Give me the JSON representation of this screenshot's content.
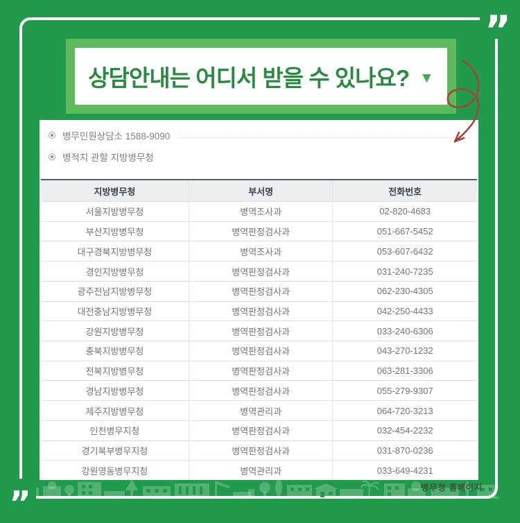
{
  "header": {
    "title": "상담안내는 어디서 받을 수 있나요?"
  },
  "decor": {
    "quote_mark": "”"
  },
  "icons": {
    "triangle_down": "▼"
  },
  "bullets": [
    {
      "text": "병무민원상담소 1588-9090"
    },
    {
      "text": "병적지 관할 지방병무청"
    }
  ],
  "table": {
    "headers": [
      "지방병무청",
      "부서명",
      "전화번호"
    ],
    "rows": [
      {
        "office": "서울지방병무청",
        "department": "병역조사과",
        "phone": "02-820-4683"
      },
      {
        "office": "부산지방병무청",
        "department": "병역판정검사과",
        "phone": "051-667-5452"
      },
      {
        "office": "대구경북지방병무청",
        "department": "병역조사과",
        "phone": "053-607-6432"
      },
      {
        "office": "경인지방병무청",
        "department": "병역판정검사과",
        "phone": "031-240-7235"
      },
      {
        "office": "광주전남지방병무청",
        "department": "병역판정검사과",
        "phone": "062-230-4305"
      },
      {
        "office": "대전충남지방병무청",
        "department": "병역판정검사과",
        "phone": "042-250-4433"
      },
      {
        "office": "강원지방병무청",
        "department": "병역판정검사과",
        "phone": "033-240-6306"
      },
      {
        "office": "충북지방병무청",
        "department": "병역판정검사과",
        "phone": "043-270-1232"
      },
      {
        "office": "전북지방병무청",
        "department": "병역판정검사과",
        "phone": "063-281-3306"
      },
      {
        "office": "경남지방병무청",
        "department": "병역판정검사과",
        "phone": "055-279-9307"
      },
      {
        "office": "제주지방병무청",
        "department": "병역관리과",
        "phone": "064-720-3213"
      },
      {
        "office": "인천병무지청",
        "department": "병역판정검사과",
        "phone": "032-454-2232"
      },
      {
        "office": "경기북부병무지청",
        "department": "병역판정검사과",
        "phone": "031-870-0236"
      },
      {
        "office": "강원영동병무지청",
        "department": "병역관리과",
        "phone": "033-649-4231"
      }
    ]
  },
  "footer": {
    "watermark": "병무청 홈페이지"
  },
  "colors": {
    "bg_green": "#219A4B",
    "frame_green": "#5EB85C",
    "title_green": "#2B8A42",
    "triangle_green": "#46A94E",
    "arrow_red": "#A0453F",
    "header_top_border": "#4E5C76",
    "header_bg": "#ECEEF0",
    "header_text": "#3A424B",
    "cell_text": "#70777E",
    "bullet_text": "#7A8187",
    "watermark_text": "#3A4F3E"
  }
}
